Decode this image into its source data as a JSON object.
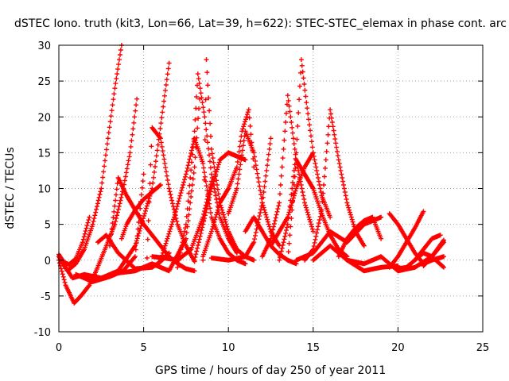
{
  "chart_data": {
    "type": "scatter",
    "title": "dSTEC Iono. truth (kit3, Lon=66, Lat=39, h=622): STEC-STEC_elemax in phase cont. arc",
    "xlabel": "GPS time / hours of day 250 of year 2011",
    "ylabel": "dSTEC  / TECUs",
    "xlim": [
      0,
      25
    ],
    "ylim": [
      -10,
      30
    ],
    "xticks": [
      0,
      5,
      10,
      15,
      20,
      25
    ],
    "yticks": [
      -10,
      -5,
      0,
      5,
      10,
      15,
      20,
      25,
      30
    ],
    "grid": true,
    "marker": "+",
    "marker_color": "#ff0000",
    "series": [
      {
        "x": [
          0.0,
          0.3,
          0.6,
          1.0,
          1.4,
          1.8
        ],
        "y": [
          0.8,
          -0.3,
          -0.6,
          0.2,
          2.5,
          6.0
        ]
      },
      {
        "x": [
          0.0,
          0.5,
          1.0,
          1.5,
          2.0,
          2.5,
          2.9,
          3.3,
          3.7
        ],
        "y": [
          0.5,
          -1.5,
          -0.5,
          1.5,
          5.0,
          10.0,
          17.0,
          24.0,
          30.0
        ]
      },
      {
        "x": [
          0.0,
          0.4,
          0.9,
          1.3,
          1.8,
          2.2,
          2.8,
          3.3,
          3.8,
          4.2,
          4.6
        ],
        "y": [
          0.0,
          -3.5,
          -6.0,
          -5.0,
          -3.5,
          -1.5,
          2.0,
          5.0,
          10.0,
          15.0,
          22.5
        ]
      },
      {
        "x": [
          0.0,
          0.8,
          1.5,
          2.5,
          3.5,
          4.5,
          5.5,
          6.5
        ],
        "y": [
          0.5,
          -2.5,
          -2.0,
          -2.5,
          -1.5,
          2.0,
          10.0,
          27.5
        ]
      },
      {
        "x": [
          2.3,
          2.8,
          3.5,
          4.5,
          5.5,
          6.0,
          6.5
        ],
        "y": [
          2.5,
          3.5,
          1.0,
          -1.2,
          -1.0,
          -0.2,
          1.0
        ]
      },
      {
        "x": [
          1.0,
          2.0,
          3.0,
          3.8,
          4.5,
          5.0
        ],
        "y": [
          -2.0,
          -3.0,
          -2.3,
          -1.5,
          0.5,
          12.0
        ]
      },
      {
        "x": [
          3.0,
          3.5,
          4.0,
          4.5,
          5.0,
          5.5,
          6.0,
          6.5,
          7.0,
          7.5,
          8.0
        ],
        "y": [
          2.0,
          11.5,
          9.0,
          7.0,
          5.0,
          3.5,
          2.0,
          0.5,
          -0.5,
          -1.2,
          -1.5
        ]
      },
      {
        "x": [
          3.7,
          4.0,
          4.5,
          5.0,
          5.5,
          6.0
        ],
        "y": [
          3.0,
          5.0,
          7.0,
          8.5,
          9.5,
          10.5
        ]
      },
      {
        "x": [
          5.2,
          5.5,
          6.0,
          6.5,
          7.0,
          7.5,
          8.0
        ],
        "y": [
          0.3,
          18.5,
          17.0,
          10.0,
          5.0,
          2.0,
          -0.2
        ]
      },
      {
        "x": [
          3.5,
          4.5,
          5.5,
          6.5,
          7.5,
          8.0,
          8.3
        ],
        "y": [
          -1.8,
          -1.5,
          -0.5,
          -1.5,
          3.0,
          13.0,
          22.5
        ]
      },
      {
        "x": [
          5.5,
          6.2,
          7.0,
          7.8,
          8.5,
          9.0
        ],
        "y": [
          0.5,
          0.3,
          0.0,
          1.5,
          6.0,
          11.0
        ]
      },
      {
        "x": [
          6.0,
          6.8,
          7.5,
          8.0,
          8.5,
          9.0,
          9.5,
          10.0,
          10.5,
          11.0
        ],
        "y": [
          0.0,
          6.0,
          12.0,
          17.0,
          13.5,
          6.0,
          3.0,
          1.0,
          0.0,
          -0.5
        ]
      },
      {
        "x": [
          7.0,
          7.5,
          8.0,
          8.2,
          8.6,
          9.0,
          9.5,
          10.0,
          10.5
        ],
        "y": [
          -1.0,
          5.0,
          18.0,
          26.0,
          20.0,
          12.0,
          6.0,
          3.0,
          1.0
        ]
      },
      {
        "x": [
          8.0,
          8.5,
          9.0,
          9.5,
          10.0,
          10.5,
          11.0
        ],
        "y": [
          0.0,
          5.0,
          10.0,
          14.0,
          15.0,
          14.5,
          14.0
        ]
      },
      {
        "x": [
          8.5,
          8.7,
          9.0,
          9.5,
          10.0,
          10.5,
          11.0,
          11.5
        ],
        "y": [
          0.0,
          28.0,
          15.5,
          8.0,
          4.0,
          1.5,
          0.5,
          0.0
        ]
      },
      {
        "x": [
          8.5,
          9.0,
          9.5,
          10.0,
          10.5,
          10.8,
          11.2,
          11.5
        ],
        "y": [
          0.5,
          4.0,
          8.0,
          10.0,
          13.0,
          18.0,
          21.0,
          13.0
        ]
      },
      {
        "x": [
          10.0,
          10.5,
          11.0,
          11.5,
          12.0,
          12.5,
          13.0
        ],
        "y": [
          6.5,
          10.0,
          18.0,
          15.0,
          8.0,
          4.0,
          2.0
        ]
      },
      {
        "x": [
          9.0,
          10.0,
          11.0,
          11.5,
          12.0,
          12.5
        ],
        "y": [
          0.3,
          0.0,
          0.5,
          2.5,
          8.0,
          17.0
        ]
      },
      {
        "x": [
          11.0,
          11.5,
          12.0,
          12.5,
          13.0,
          13.5,
          14.0
        ],
        "y": [
          4.0,
          6.0,
          4.0,
          2.0,
          0.8,
          0.0,
          -0.5
        ]
      },
      {
        "x": [
          12.0,
          12.5,
          13.0,
          13.5,
          14.0,
          14.5,
          15.0
        ],
        "y": [
          0.5,
          3.0,
          8.0,
          23.0,
          14.0,
          8.0,
          4.0
        ]
      },
      {
        "x": [
          13.0,
          13.5,
          14.0,
          14.3,
          14.6,
          15.0,
          15.5,
          16.0
        ],
        "y": [
          0.0,
          5.0,
          15.0,
          28.0,
          22.0,
          15.0,
          9.0,
          6.0
        ]
      },
      {
        "x": [
          13.5,
          14.0,
          14.5,
          15.0,
          15.5,
          16.0,
          16.5,
          17.0
        ],
        "y": [
          0.0,
          14.0,
          12.0,
          10.0,
          6.5,
          3.5,
          1.5,
          0.5
        ]
      },
      {
        "x": [
          12.5,
          13.0,
          13.5,
          14.0,
          14.5,
          15.0
        ],
        "y": [
          2.0,
          4.0,
          6.0,
          10.0,
          13.0,
          15.0
        ]
      },
      {
        "x": [
          14.5,
          15.0,
          15.5,
          16.0,
          16.5,
          17.0,
          17.5,
          18.0
        ],
        "y": [
          0.0,
          1.5,
          7.0,
          21.0,
          14.0,
          8.0,
          4.0,
          2.0
        ]
      },
      {
        "x": [
          14.0,
          15.0,
          16.0,
          17.0,
          18.0,
          19.0
        ],
        "y": [
          0.0,
          1.0,
          4.0,
          2.5,
          5.0,
          6.0
        ]
      },
      {
        "x": [
          15.0,
          16.0,
          17.0,
          18.0,
          19.0,
          20.0
        ],
        "y": [
          0.0,
          2.0,
          0.0,
          -1.5,
          -1.0,
          -0.8
        ]
      },
      {
        "x": [
          16.5,
          17.0,
          17.5,
          18.0,
          18.5,
          19.0
        ],
        "y": [
          0.5,
          3.0,
          4.5,
          5.5,
          6.0,
          3.0
        ]
      },
      {
        "x": [
          17.0,
          18.0,
          19.0,
          20.0,
          21.0,
          22.0,
          22.7
        ],
        "y": [
          0.0,
          -0.5,
          0.5,
          -1.5,
          -1.0,
          0.5,
          2.5
        ]
      },
      {
        "x": [
          19.5,
          20.0,
          20.5,
          21.0,
          21.5,
          22.0,
          22.7
        ],
        "y": [
          6.5,
          5.0,
          3.0,
          1.0,
          -0.5,
          0.0,
          0.5
        ]
      },
      {
        "x": [
          19.5,
          20.0,
          20.5,
          21.0,
          21.5
        ],
        "y": [
          -1.0,
          0.5,
          2.5,
          4.5,
          6.8
        ]
      },
      {
        "x": [
          20.0,
          20.5,
          21.0,
          21.5,
          22.0,
          22.5
        ],
        "y": [
          -1.2,
          -1.0,
          0.0,
          1.5,
          3.0,
          3.5
        ]
      },
      {
        "x": [
          21.0,
          21.5,
          22.0,
          22.7
        ],
        "y": [
          0.0,
          1.0,
          0.5,
          -1.0
        ]
      },
      {
        "x": [
          21.5,
          22.0,
          22.7
        ],
        "y": [
          -0.8,
          0.5,
          2.8
        ]
      }
    ]
  }
}
